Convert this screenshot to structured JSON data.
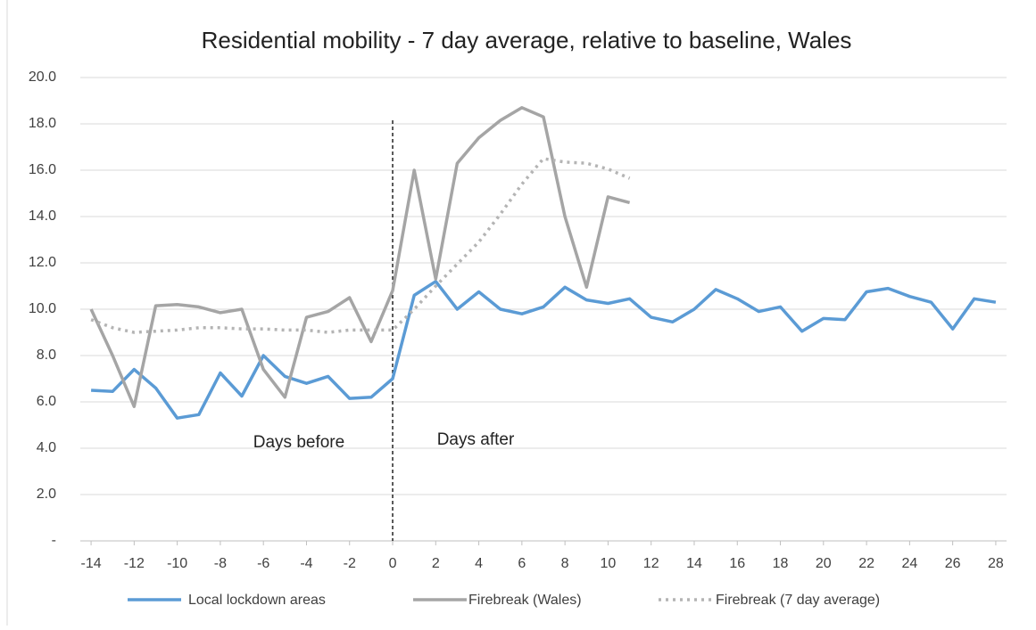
{
  "chart_data": {
    "type": "line",
    "title": "Residential mobility - 7 day average, relative to baseline, Wales",
    "x": [
      -14,
      -13,
      -12,
      -11,
      -10,
      -9,
      -8,
      -7,
      -6,
      -5,
      -4,
      -3,
      -2,
      -1,
      0,
      1,
      2,
      3,
      4,
      5,
      6,
      7,
      8,
      9,
      10,
      11,
      12,
      13,
      14,
      15,
      16,
      17,
      18,
      19,
      20,
      21,
      22,
      23,
      24,
      25,
      26,
      27,
      28
    ],
    "xlim": [
      -14.5,
      28.5
    ],
    "xticks": [
      -14,
      -12,
      -10,
      -8,
      -6,
      -4,
      -2,
      0,
      2,
      4,
      6,
      8,
      10,
      12,
      14,
      16,
      18,
      20,
      22,
      24,
      26,
      28
    ],
    "ylim": [
      0,
      20
    ],
    "yticks": [
      {
        "value": 0,
        "label": "-"
      },
      {
        "value": 2,
        "label": "2.0"
      },
      {
        "value": 4,
        "label": "4.0"
      },
      {
        "value": 6,
        "label": "6.0"
      },
      {
        "value": 8,
        "label": "8.0"
      },
      {
        "value": 10,
        "label": "10.0"
      },
      {
        "value": 12,
        "label": "12.0"
      },
      {
        "value": 14,
        "label": "14.0"
      },
      {
        "value": 16,
        "label": "16.0"
      },
      {
        "value": 18,
        "label": "18.0"
      },
      {
        "value": 20,
        "label": "20.0"
      }
    ],
    "grid": true,
    "legend": "bottom",
    "reference_line_x": 0,
    "annotations": [
      "Days before",
      "Days after"
    ],
    "series": [
      {
        "name": "Local lockdown areas",
        "color": "#5b9bd5",
        "style": "solid",
        "values": [
          6.5,
          6.45,
          7.4,
          6.6,
          5.3,
          5.45,
          7.25,
          6.25,
          8.0,
          7.1,
          6.8,
          7.1,
          6.15,
          6.2,
          7.0,
          10.6,
          11.2,
          10.0,
          10.75,
          10.0,
          9.8,
          10.1,
          10.95,
          10.4,
          10.25,
          10.45,
          9.65,
          9.45,
          10.0,
          10.85,
          10.45,
          9.9,
          10.1,
          9.05,
          9.6,
          9.55,
          10.75,
          10.9,
          10.55,
          10.3,
          9.15,
          10.45,
          10.3
        ]
      },
      {
        "name": "Firebreak (Wales)",
        "color": "#a5a5a5",
        "style": "solid",
        "values": [
          10.0,
          8.0,
          5.8,
          10.15,
          10.2,
          10.1,
          9.85,
          10.0,
          7.4,
          6.2,
          9.65,
          9.9,
          10.5,
          8.6,
          10.8,
          16.0,
          11.3,
          16.3,
          17.4,
          18.15,
          18.7,
          18.3,
          14.0,
          10.95,
          14.85,
          14.6,
          null,
          null,
          null,
          null,
          null,
          null,
          null,
          null,
          null,
          null,
          null,
          null,
          null,
          null,
          null,
          null,
          null
        ]
      },
      {
        "name": "Firebreak (7 day average)",
        "color": "#b4b4b4",
        "style": "dotted",
        "values": [
          9.55,
          9.2,
          9.0,
          9.05,
          9.1,
          9.2,
          9.2,
          9.15,
          9.15,
          9.1,
          9.1,
          9.0,
          9.1,
          9.1,
          9.1,
          10.0,
          11.0,
          11.95,
          12.9,
          14.1,
          15.4,
          16.5,
          16.35,
          16.3,
          16.05,
          15.65,
          null,
          null,
          null,
          null,
          null,
          null,
          null,
          null,
          null,
          null,
          null,
          null,
          null,
          null,
          null,
          null,
          null
        ]
      }
    ]
  }
}
